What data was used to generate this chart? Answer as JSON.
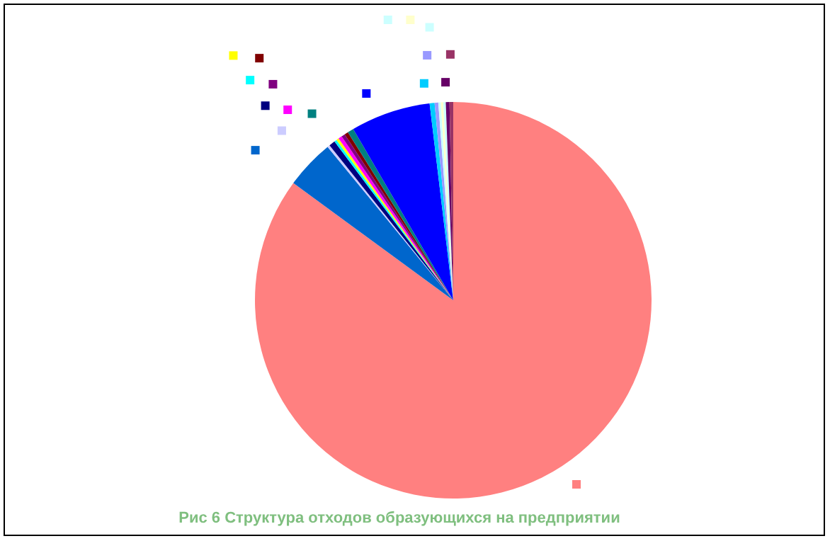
{
  "chart_data": {
    "type": "pie",
    "title": "Рис 6 Структура отходов образующихся на предприятии",
    "categories": [
      null,
      null,
      null,
      null,
      null,
      null,
      null,
      null,
      null,
      null,
      null,
      null,
      null,
      null,
      null,
      null,
      null,
      null
    ],
    "values": [
      84.9,
      4,
      0.2,
      0.5,
      0.2,
      0.2,
      0.3,
      0.3,
      0.3,
      0.5,
      6.5,
      0.4,
      0.3,
      0.2,
      0.2,
      0.2,
      0.3,
      0.3
    ],
    "colors": [
      "#ff8080",
      "#0066cc",
      "#ccccff",
      "#000080",
      "#00ffff",
      "#ffff00",
      "#ff00ff",
      "#800080",
      "#800000",
      "#008080",
      "#0000ff",
      "#00ccff",
      "#9999ff",
      "#ccffff",
      "#ffffcc",
      "#ccffff",
      "#660066",
      "#993366"
    ]
  }
}
